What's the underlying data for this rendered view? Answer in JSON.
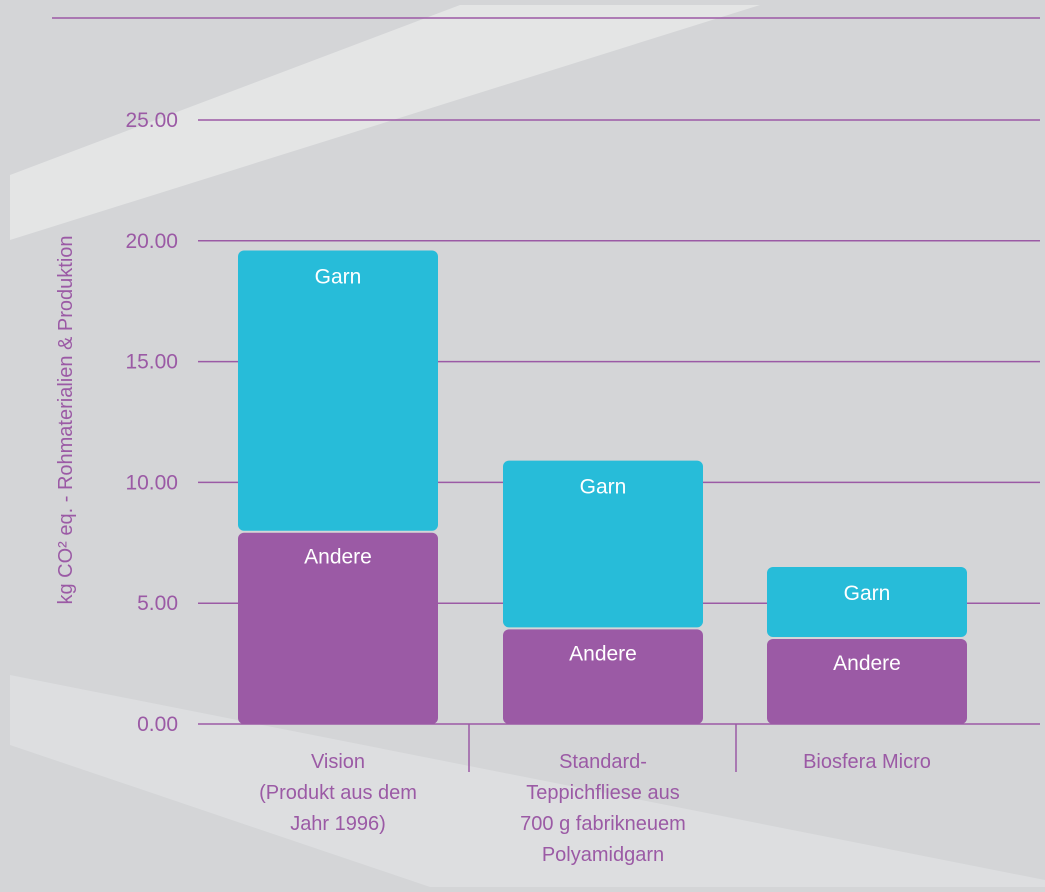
{
  "chart_data": {
    "type": "bar",
    "stacked": true,
    "ylabel": "kg CO² eq. - Rohmaterialien & Produktion",
    "ylim": [
      0,
      25
    ],
    "yticks": [
      "0.00",
      "5.00",
      "10.00",
      "15.00",
      "20.00",
      "25.00"
    ],
    "ytick_values": [
      0,
      5,
      10,
      15,
      20,
      25
    ],
    "grid": true,
    "categories": [
      [
        "Vision",
        "(Produkt aus dem",
        "Jahr 1996)"
      ],
      [
        "Standard-",
        "Teppichfliese aus",
        "700 g fabrikneuem",
        "Polyamidgarn"
      ],
      [
        "Biosfera  Micro"
      ]
    ],
    "series": [
      {
        "name": "Andere",
        "values": [
          8.0,
          4.0,
          3.6
        ]
      },
      {
        "name": "Garn",
        "values": [
          11.6,
          6.9,
          2.9
        ]
      }
    ],
    "colors": {
      "background": "#d4d5d7",
      "andere": "#9b5aa5",
      "garn": "#27bcd9",
      "axis_text": "#9b5aa5",
      "gridline": "#9b5aa5",
      "bar_label": "#ffffff",
      "category_text": "#9b5aa5"
    }
  }
}
